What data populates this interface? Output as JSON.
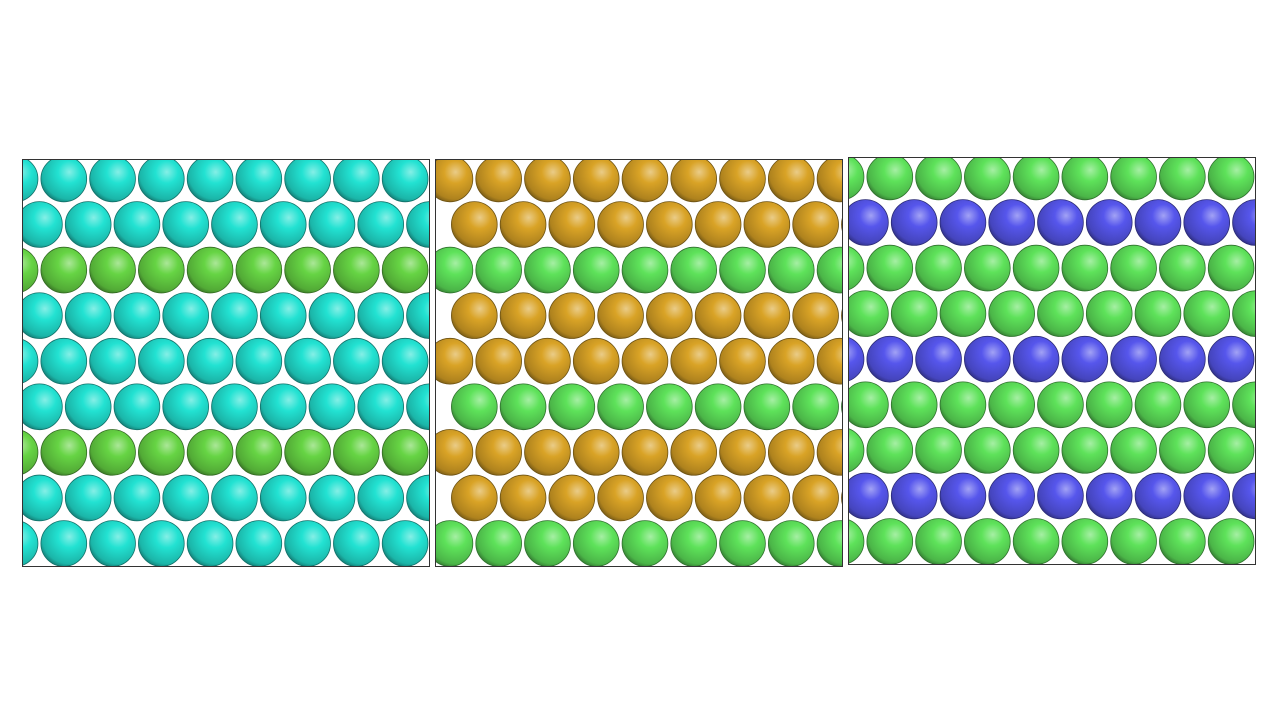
{
  "colors": {
    "cyan": "#22e2d2",
    "green_a": "#66d444",
    "green_b": "#5ee25a",
    "gold": "#d9a326",
    "blue": "#5656ec"
  },
  "panels": [
    {
      "rows": [
        "cyan",
        "cyan",
        "green_a",
        "cyan",
        "cyan",
        "cyan",
        "green_a",
        "cyan",
        "cyan"
      ]
    },
    {
      "rows": [
        "gold",
        "gold",
        "green_b",
        "gold",
        "gold",
        "green_b",
        "gold",
        "gold",
        "green_b"
      ]
    },
    {
      "rows": [
        "green_b",
        "blue",
        "green_b",
        "green_b",
        "blue",
        "green_b",
        "green_b",
        "blue",
        "green_b"
      ]
    }
  ]
}
